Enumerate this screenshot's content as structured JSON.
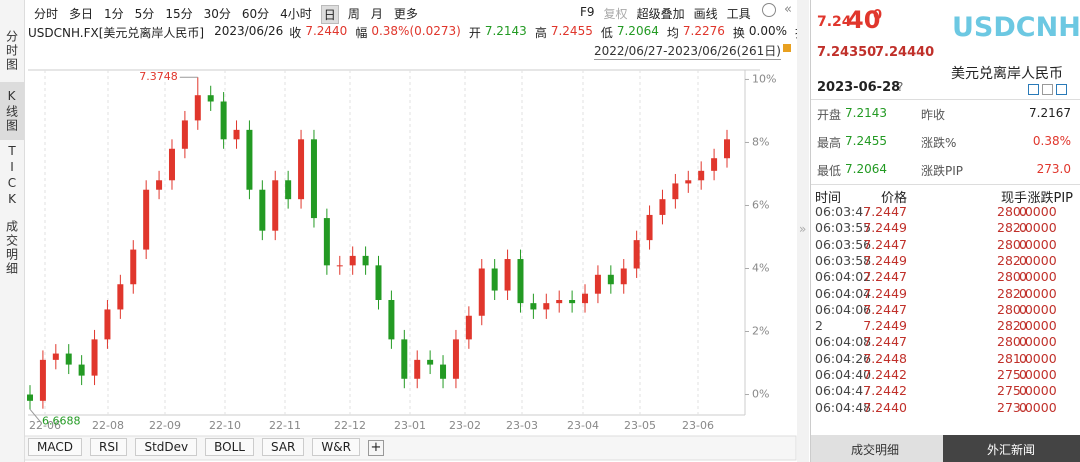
{
  "toolbar": {
    "periods": [
      "分时",
      "多日",
      "1分",
      "5分",
      "15分",
      "30分",
      "60分",
      "4小时",
      "日",
      "周",
      "月",
      "更多"
    ],
    "tools": [
      "F9",
      "复权",
      "超级叠加",
      "画线",
      "工具"
    ]
  },
  "sidebar": [
    "分时图",
    "K线图",
    "TICK",
    "成交明细"
  ],
  "info": {
    "symbol": "USDCNH.FX[美元兑离岸人民币]",
    "date": "2023/06/26",
    "fields": [
      {
        "label": "收",
        "value": "7.2440"
      },
      {
        "label": "幅",
        "value": "0.38%(0.0273)"
      },
      {
        "label": "开",
        "value": "7.2143"
      },
      {
        "label": "高",
        "value": "7.2455"
      },
      {
        "label": "低",
        "value": "7.2064"
      },
      {
        "label": "均",
        "value": "7.2276"
      },
      {
        "label": "换",
        "value": "0.00%"
      }
    ],
    "last": "振"
  },
  "range": "2022/06/27-2023/06/26(261日)",
  "chart_data": {
    "type": "candlestick",
    "open": [
      0,
      -0.2,
      1.1,
      1.3,
      0.95,
      0.6,
      1.75,
      2.7,
      3.5,
      4.6,
      6.5,
      6.8,
      7.8,
      8.7,
      9.5,
      9.3,
      8.1,
      8.4,
      6.5,
      5.2,
      6.8,
      6.2,
      8.1,
      5.6,
      4.1,
      4.1,
      4.4,
      4.1,
      3.0,
      1.75,
      0.5,
      1.1,
      0.95,
      0.5,
      1.75,
      2.5,
      4.0,
      3.3,
      4.3,
      2.9,
      2.7,
      2.9,
      3.0,
      2.9,
      3.2,
      3.8,
      3.5,
      4.0,
      4.9,
      5.7,
      6.2,
      6.7,
      6.8,
      7.1,
      7.5
    ],
    "high": [
      0.3,
      1.4,
      1.6,
      1.6,
      1.25,
      2.05,
      3.0,
      3.8,
      4.9,
      6.8,
      7.1,
      8.1,
      9.0,
      10.07,
      9.8,
      9.6,
      8.7,
      8.7,
      6.8,
      7.1,
      7.1,
      8.4,
      8.4,
      5.9,
      4.4,
      4.7,
      4.7,
      4.4,
      3.3,
      2.05,
      1.4,
      1.4,
      1.25,
      2.05,
      2.8,
      4.3,
      4.3,
      4.6,
      4.6,
      3.2,
      3.2,
      3.3,
      3.3,
      3.5,
      4.1,
      4.1,
      4.3,
      5.2,
      6.0,
      6.5,
      7.0,
      7.1,
      7.4,
      7.8,
      8.4
    ],
    "low": [
      -0.47,
      -0.45,
      0.8,
      0.65,
      0.3,
      0.3,
      1.45,
      2.4,
      3.2,
      4.3,
      6.2,
      6.5,
      7.5,
      8.4,
      9.0,
      7.8,
      7.8,
      6.2,
      4.9,
      4.9,
      5.9,
      5.9,
      5.3,
      3.8,
      3.8,
      3.8,
      3.8,
      2.7,
      1.45,
      0.2,
      0.2,
      0.65,
      0.2,
      0.2,
      1.45,
      2.2,
      3.0,
      3.0,
      2.6,
      2.4,
      2.4,
      2.6,
      2.6,
      2.6,
      2.9,
      3.2,
      3.2,
      3.7,
      4.6,
      5.4,
      5.9,
      6.4,
      6.5,
      6.8,
      7.2
    ],
    "close": [
      -0.2,
      1.1,
      1.3,
      0.95,
      0.6,
      1.75,
      2.7,
      3.5,
      4.6,
      6.5,
      6.8,
      7.8,
      8.7,
      9.5,
      9.3,
      8.1,
      8.4,
      6.5,
      5.2,
      6.8,
      6.2,
      8.1,
      5.6,
      4.1,
      4.1,
      4.4,
      4.1,
      3.0,
      1.75,
      0.5,
      1.1,
      0.95,
      0.5,
      1.75,
      2.5,
      4.0,
      3.3,
      4.3,
      2.9,
      2.7,
      2.9,
      3.0,
      2.9,
      3.2,
      3.8,
      3.5,
      4.0,
      4.9,
      5.7,
      6.2,
      6.7,
      6.8,
      7.1,
      7.5,
      8.1
    ],
    "up_color": "#e0362c",
    "down_color": "#239a23",
    "ylim": [
      -0.65,
      10.3
    ],
    "yticks": [
      {
        "value": 0,
        "label": "0%"
      },
      {
        "value": 2,
        "label": "2%"
      },
      {
        "value": 4,
        "label": "4%"
      },
      {
        "value": 6,
        "label": "6%"
      },
      {
        "value": 8,
        "label": "8%"
      },
      {
        "value": 10,
        "label": "10%"
      }
    ],
    "x_labels": [
      "22-06",
      "22-08",
      "22-09",
      "22-10",
      "22-11",
      "22-12",
      "23-01",
      "23-02",
      "23-03",
      "23-04",
      "23-05",
      "23-06"
    ],
    "max_label": "7.3748",
    "min_label": "6.6688"
  },
  "indicators": [
    "MACD",
    "RSI",
    "StdDev",
    "BOLL",
    "SAR",
    "W&R"
  ],
  "quote": {
    "price": [
      "7.24",
      "40",
      "0"
    ],
    "bid": "7.24350",
    "ask": "7.24440",
    "code": "USDCNH",
    "name": "美元兑离岸人民币",
    "date": "2023-06-28",
    "help": "?",
    "stats": [
      [
        "开盘",
        "7.2143",
        "昨收",
        "7.2167"
      ],
      [
        "最高",
        "7.2455",
        "涨跌%",
        "0.38%"
      ],
      [
        "最低",
        "7.2064",
        "涨跌PIP",
        "273.0"
      ]
    ],
    "tick_header": [
      "时间",
      "价格",
      "现手",
      "涨跌PIP"
    ],
    "ticks": [
      [
        "06:03:47",
        "7.2447",
        "0",
        "280.0000"
      ],
      [
        "06:03:55",
        "7.2449",
        "0",
        "282.0000"
      ],
      [
        "06:03:56",
        "7.2447",
        "0",
        "280.0000"
      ],
      [
        "06:03:58",
        "7.2449",
        "0",
        "282.0000"
      ],
      [
        "06:04:02",
        "7.2447",
        "0",
        "280.0000"
      ],
      [
        "06:04:04",
        "7.2449",
        "0",
        "282.0000"
      ],
      [
        "06:04:06",
        "7.2447",
        "0",
        "280.0000"
      ],
      [
        "2",
        "7.2449",
        "0",
        "282.0000"
      ],
      [
        "06:04:08",
        "7.2447",
        "0",
        "280.0000"
      ],
      [
        "06:04:26",
        "7.2448",
        "0",
        "281.0000"
      ],
      [
        "06:04:40",
        "7.2442",
        "0",
        "275.0000"
      ],
      [
        "06:04:47",
        "7.2442",
        "0",
        "275.0000"
      ],
      [
        "06:04:48",
        "7.2440",
        "0",
        "273.0000"
      ]
    ],
    "tabs": [
      "成交明细",
      "外汇新闻"
    ]
  }
}
